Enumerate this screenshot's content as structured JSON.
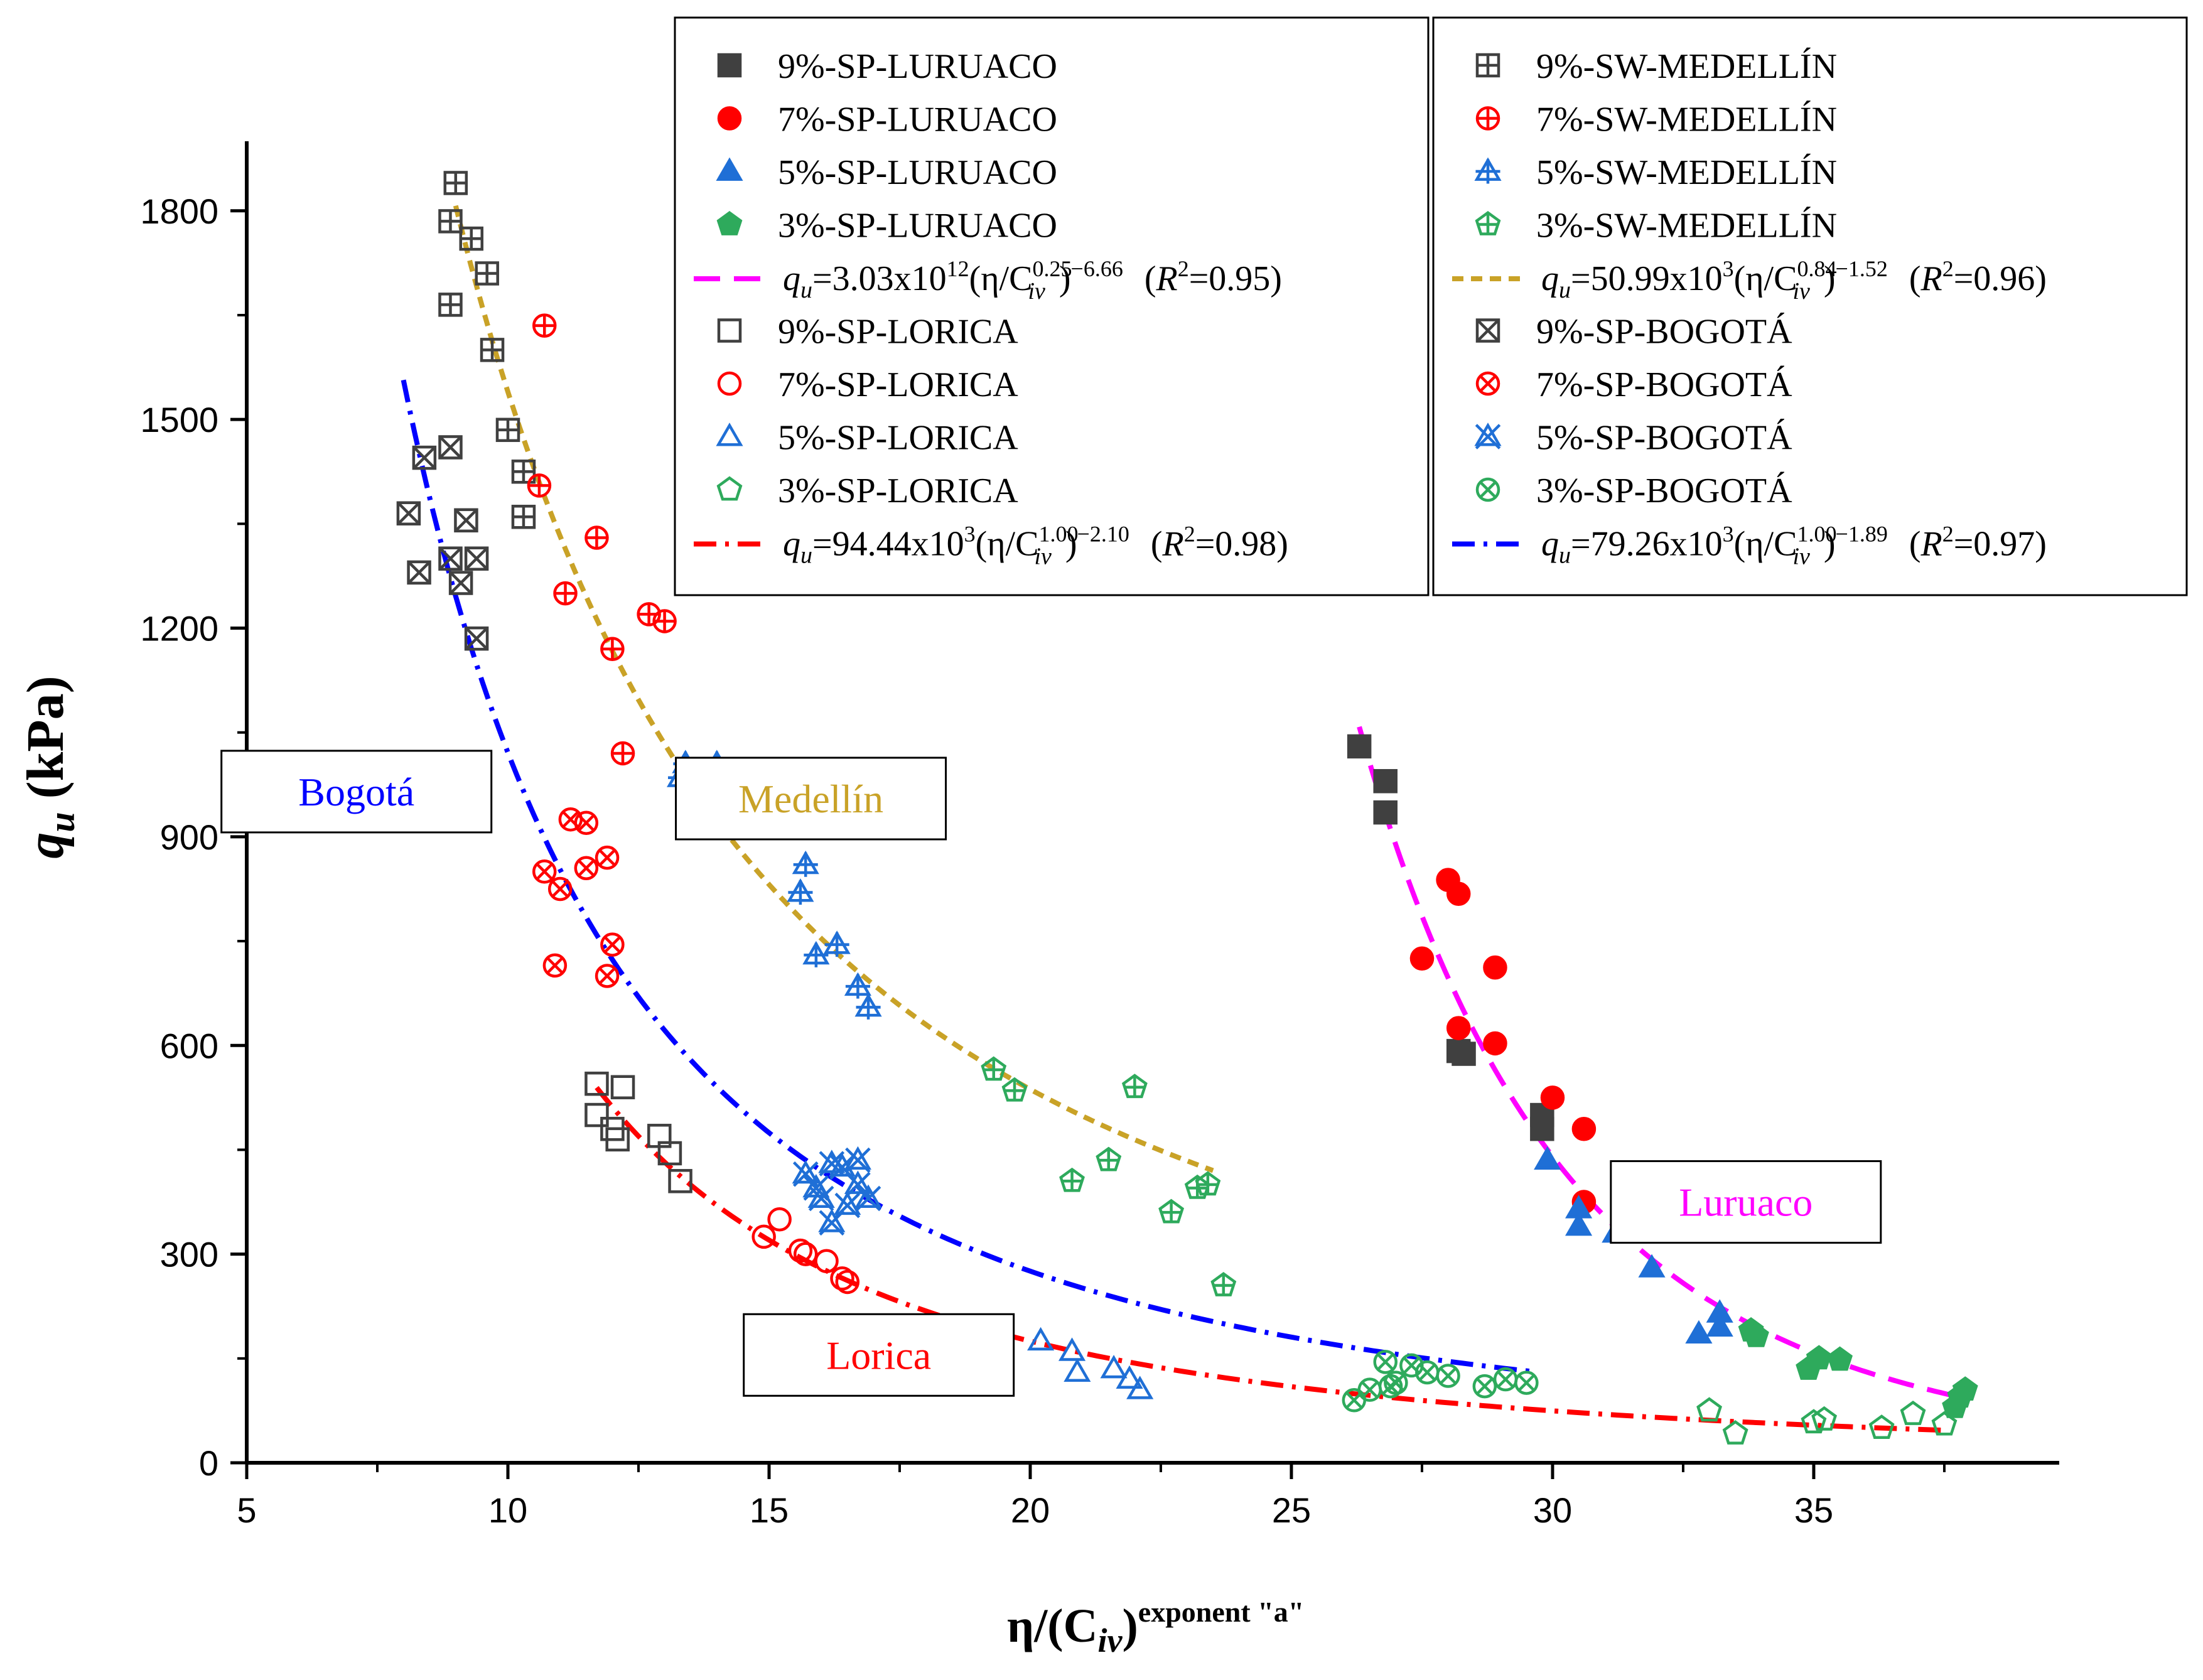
{
  "chart_data": {
    "type": "scatter",
    "title": "",
    "x_axis": {
      "label_main": "η/(C",
      "label_sub": "iv",
      "label_close": ")",
      "label_sup": "exponent \"a\"",
      "range": [
        5,
        39.7
      ],
      "ticks": [
        5,
        10,
        15,
        20,
        25,
        30,
        35
      ],
      "tick_labels": [
        "5",
        "10",
        "15",
        "20",
        "25",
        "30",
        "35"
      ]
    },
    "y_axis": {
      "label_main": "q",
      "label_sub": "u",
      "label_unit": " (kPa)",
      "range": [
        0,
        1900
      ],
      "ticks": [
        0,
        300,
        600,
        900,
        1200,
        1500,
        1800
      ],
      "tick_labels": [
        "0",
        "300",
        "600",
        "900",
        "1200",
        "1500",
        "1800"
      ]
    },
    "grid": false,
    "legend_placement": "top",
    "series": [
      {
        "id": "lur9",
        "name": "9%-SP-LURUACO",
        "marker": "square",
        "style": "filled",
        "color": "#404040",
        "points": [
          [
            26.3,
            1030
          ],
          [
            26.8,
            980
          ],
          [
            26.8,
            935
          ],
          [
            28.2,
            592
          ],
          [
            28.3,
            588
          ],
          [
            29.8,
            480
          ],
          [
            29.8,
            500
          ]
        ]
      },
      {
        "id": "lur7",
        "name": "7%-SP-LURUACO",
        "marker": "circle",
        "style": "filled",
        "color": "#ff0000",
        "points": [
          [
            28.0,
            838
          ],
          [
            28.2,
            818
          ],
          [
            27.5,
            725
          ],
          [
            28.9,
            712
          ],
          [
            28.2,
            625
          ],
          [
            28.9,
            603
          ],
          [
            30.0,
            525
          ],
          [
            30.6,
            480
          ],
          [
            30.6,
            375
          ]
        ]
      },
      {
        "id": "lur5",
        "name": "5%-SP-LURUACO",
        "marker": "triangle",
        "style": "filled",
        "color": "#1f6fd6",
        "points": [
          [
            29.9,
            435
          ],
          [
            30.5,
            365
          ],
          [
            30.5,
            340
          ],
          [
            31.4,
            400
          ],
          [
            31.2,
            330
          ],
          [
            31.9,
            280
          ],
          [
            32.8,
            185
          ],
          [
            33.2,
            215
          ],
          [
            33.2,
            195
          ]
        ]
      },
      {
        "id": "lur3",
        "name": "3%-SP-LURUACO",
        "marker": "pentagon",
        "style": "filled",
        "color": "#2eaa5c",
        "points": [
          [
            33.8,
            190
          ],
          [
            33.9,
            182
          ],
          [
            34.9,
            135
          ],
          [
            35.1,
            150
          ],
          [
            35.5,
            148
          ],
          [
            37.7,
            80
          ],
          [
            37.9,
            105
          ],
          [
            37.8,
            95
          ]
        ]
      },
      {
        "id": "lor9",
        "name": "9%-SP-LORICA",
        "marker": "square",
        "style": "open",
        "color": "#404040",
        "points": [
          [
            11.7,
            545
          ],
          [
            12.2,
            540
          ],
          [
            11.7,
            500
          ],
          [
            12.0,
            480
          ],
          [
            12.1,
            465
          ],
          [
            12.9,
            470
          ],
          [
            13.1,
            445
          ],
          [
            13.3,
            405
          ]
        ]
      },
      {
        "id": "lor7",
        "name": "7%-SP-LORICA",
        "marker": "circle",
        "style": "open",
        "color": "#ff0000",
        "points": [
          [
            14.9,
            325
          ],
          [
            15.2,
            350
          ],
          [
            15.6,
            305
          ],
          [
            15.7,
            300
          ],
          [
            16.1,
            290
          ],
          [
            16.4,
            265
          ],
          [
            16.5,
            260
          ]
        ]
      },
      {
        "id": "lor5",
        "name": "5%-SP-LORICA",
        "marker": "triangle",
        "style": "open",
        "color": "#1f6fd6",
        "points": [
          [
            20.2,
            175
          ],
          [
            20.8,
            160
          ],
          [
            20.9,
            130
          ],
          [
            21.6,
            135
          ],
          [
            21.9,
            120
          ],
          [
            22.1,
            105
          ]
        ]
      },
      {
        "id": "lor3",
        "name": "3%-SP-LORICA",
        "marker": "pentagon",
        "style": "open",
        "color": "#2eaa5c",
        "points": [
          [
            33.0,
            75
          ],
          [
            33.5,
            42
          ],
          [
            35.0,
            58
          ],
          [
            35.2,
            62
          ],
          [
            36.3,
            50
          ],
          [
            36.9,
            70
          ],
          [
            37.5,
            55
          ]
        ]
      },
      {
        "id": "med9",
        "name": "9%-SW-MEDELLÍN",
        "marker": "square",
        "style": "plus",
        "color": "#404040",
        "points": [
          [
            9.0,
            1840
          ],
          [
            8.9,
            1785
          ],
          [
            9.3,
            1760
          ],
          [
            8.9,
            1665
          ],
          [
            9.6,
            1710
          ],
          [
            9.7,
            1600
          ],
          [
            10.0,
            1485
          ],
          [
            10.3,
            1425
          ],
          [
            10.3,
            1360
          ]
        ]
      },
      {
        "id": "med7",
        "name": "7%-SW-MEDELLÍN",
        "marker": "circle",
        "style": "plus",
        "color": "#ff0000",
        "points": [
          [
            10.7,
            1635
          ],
          [
            10.6,
            1405
          ],
          [
            11.7,
            1330
          ],
          [
            11.1,
            1250
          ],
          [
            12.7,
            1220
          ],
          [
            13.0,
            1210
          ],
          [
            12.0,
            1170
          ],
          [
            12.2,
            1020
          ]
        ]
      },
      {
        "id": "med5",
        "name": "5%-SW-MEDELLÍN",
        "marker": "triangle",
        "style": "plus",
        "color": "#1f6fd6",
        "points": [
          [
            13.4,
            1005
          ],
          [
            13.3,
            985
          ],
          [
            14.0,
            1005
          ],
          [
            15.7,
            860
          ],
          [
            15.6,
            820
          ],
          [
            15.9,
            730
          ],
          [
            16.3,
            745
          ],
          [
            16.7,
            685
          ],
          [
            16.9,
            655
          ]
        ]
      },
      {
        "id": "med3",
        "name": "3%-SW-MEDELLÍN",
        "marker": "pentagon",
        "style": "plus",
        "color": "#2eaa5c",
        "points": [
          [
            19.3,
            565
          ],
          [
            19.7,
            535
          ],
          [
            22.0,
            540
          ],
          [
            20.8,
            405
          ],
          [
            21.5,
            435
          ],
          [
            22.7,
            360
          ],
          [
            23.2,
            395
          ],
          [
            23.4,
            400
          ],
          [
            23.7,
            255
          ]
        ]
      },
      {
        "id": "bog9",
        "name": "9%-SP-BOGOTÁ",
        "marker": "square",
        "style": "cross",
        "color": "#404040",
        "points": [
          [
            8.4,
            1445
          ],
          [
            8.9,
            1460
          ],
          [
            8.1,
            1365
          ],
          [
            9.2,
            1355
          ],
          [
            8.9,
            1300
          ],
          [
            9.4,
            1300
          ],
          [
            8.3,
            1280
          ],
          [
            9.1,
            1265
          ],
          [
            9.4,
            1185
          ]
        ]
      },
      {
        "id": "bog7",
        "name": "7%-SP-BOGOTÁ",
        "marker": "circle",
        "style": "cross",
        "color": "#ff0000",
        "points": [
          [
            11.2,
            925
          ],
          [
            11.5,
            920
          ],
          [
            10.7,
            850
          ],
          [
            11.5,
            855
          ],
          [
            11.9,
            870
          ],
          [
            11.0,
            825
          ],
          [
            12.0,
            745
          ],
          [
            10.9,
            715
          ],
          [
            11.9,
            700
          ]
        ]
      },
      {
        "id": "bog5",
        "name": "5%-SP-BOGOTÁ",
        "marker": "star",
        "style": "open",
        "color": "#1f6fd6",
        "points": [
          [
            15.7,
            415
          ],
          [
            15.9,
            395
          ],
          [
            16.0,
            380
          ],
          [
            16.2,
            430
          ],
          [
            16.4,
            425
          ],
          [
            16.7,
            435
          ],
          [
            16.7,
            400
          ],
          [
            16.9,
            380
          ],
          [
            16.5,
            370
          ],
          [
            16.2,
            345
          ]
        ]
      },
      {
        "id": "bog3",
        "name": "3%-SP-BOGOTÁ",
        "marker": "circle",
        "style": "cross",
        "color": "#2eaa5c",
        "points": [
          [
            26.2,
            90
          ],
          [
            26.5,
            105
          ],
          [
            26.8,
            145
          ],
          [
            27.0,
            115
          ],
          [
            27.3,
            140
          ],
          [
            27.6,
            130
          ],
          [
            28.0,
            125
          ],
          [
            28.7,
            110
          ],
          [
            29.1,
            120
          ],
          [
            29.5,
            115
          ],
          [
            26.9,
            110
          ]
        ]
      }
    ],
    "fits": [
      {
        "id": "fit_lur",
        "name": "qu=3.03x10^12(η/Civ^0.25)^−6.66 (R²=0.95)",
        "color": "#ff00ff",
        "dash": "long-dash",
        "coef": 3030000000000.0,
        "power": -6.66,
        "x_range": [
          26.3,
          37.6
        ],
        "label": {
          "q": "q",
          "sub_u": "u",
          "coef": "=3.03x10",
          "coef_exp": "12",
          "open": "(η/C",
          "sub_iv": "iv",
          "exp_c": "0.25",
          "close": ")",
          "pow": "−6.66",
          "r_open": "(",
          "r": "R",
          "r_exp": "2",
          "r_val": "=0.95)"
        }
      },
      {
        "id": "fit_med",
        "name": "qu=50.99x10^3(η/Civ^0.84)^−1.52 (R²=0.96)",
        "color": "#c9a227",
        "dash": "short-dash",
        "coef": 50990,
        "power": -1.52,
        "x_range": [
          9.0,
          23.5
        ],
        "label": {
          "q": "q",
          "sub_u": "u",
          "coef": "=50.99x10",
          "coef_exp": "3",
          "open": "(η/C",
          "sub_iv": "iv",
          "exp_c": "0.84",
          "close": ")",
          "pow": "−1.52",
          "r_open": "(",
          "r": "R",
          "r_exp": "2",
          "r_val": "=0.96)"
        }
      },
      {
        "id": "fit_lor",
        "name": "qu=94.44x10^3(η/Civ^1.00)^−2.10 (R²=0.98)",
        "color": "#ff0000",
        "dash": "dash-dot",
        "coef": 94440,
        "power": -2.1,
        "x_range": [
          11.7,
          37.6
        ],
        "label": {
          "q": "q",
          "sub_u": "u",
          "coef": "=94.44x10",
          "coef_exp": "3",
          "open": "(η/C",
          "sub_iv": "iv",
          "exp_c": "1.00",
          "close": ")",
          "pow": "−2.10",
          "r_open": "(",
          "r": "R",
          "r_exp": "2",
          "r_val": "=0.98)"
        }
      },
      {
        "id": "fit_bog",
        "name": "qu=79.26x10^3(η/Civ^1.00)^−1.89 (R²=0.97)",
        "color": "#0000ff",
        "dash": "dash-dot",
        "coef": 79260,
        "power": -1.89,
        "x_range": [
          8.0,
          29.7
        ],
        "label": {
          "q": "q",
          "sub_u": "u",
          "coef": "=79.26x10",
          "coef_exp": "3",
          "open": "(η/C",
          "sub_iv": "iv",
          "exp_c": "1.00",
          "close": ")",
          "pow": "−1.89",
          "r_open": "(",
          "r": "R",
          "r_exp": "2",
          "r_val": "=0.97)"
        }
      }
    ],
    "legend_columns": [
      [
        "lur9",
        "lur7",
        "lur5",
        "lur3",
        "fit_lur",
        "lor9",
        "lor7",
        "lor5",
        "lor3",
        "fit_lor"
      ],
      [
        "med9",
        "med7",
        "med5",
        "med3",
        "fit_med",
        "bog9",
        "bog7",
        "bog5",
        "bog3",
        "fit_bog"
      ]
    ],
    "annotations": [
      {
        "id": "ann_bogota",
        "text": "Bogotá",
        "color": "#0000ff",
        "x": 7.1,
        "y": 965
      },
      {
        "id": "ann_medellin",
        "text": "Medellín",
        "color": "#c9a227",
        "x": 15.8,
        "y": 955
      },
      {
        "id": "ann_lorica",
        "text": "Lorica",
        "color": "#ff0000",
        "x": 17.1,
        "y": 155
      },
      {
        "id": "ann_luruaco",
        "text": "Luruaco",
        "color": "#ff00ff",
        "x": 33.7,
        "y": 375
      }
    ]
  }
}
